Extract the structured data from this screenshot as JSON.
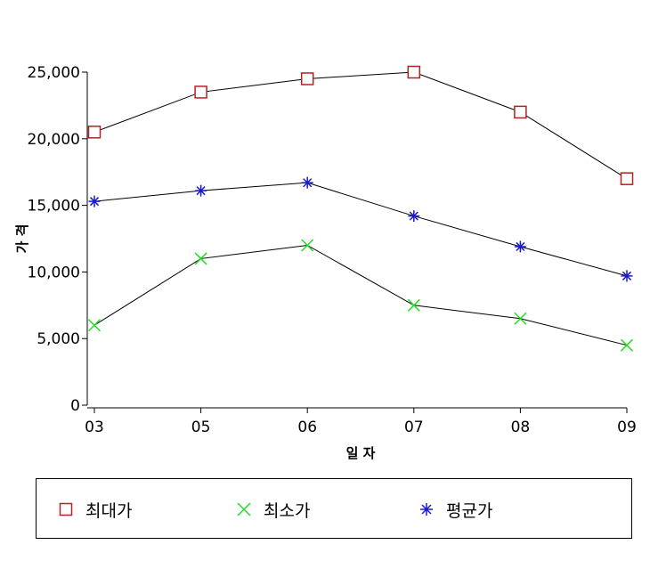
{
  "chart_data": {
    "type": "line",
    "categories": [
      "03",
      "05",
      "06",
      "07",
      "08",
      "09"
    ],
    "series": [
      {
        "name": "최대가",
        "values": [
          20500,
          23500,
          24500,
          25000,
          22000,
          17000
        ],
        "color": "#b22222",
        "marker": "square"
      },
      {
        "name": "최소가",
        "values": [
          6000,
          11000,
          12000,
          7500,
          6500,
          4500
        ],
        "color": "#22dd22",
        "marker": "x"
      },
      {
        "name": "평균가",
        "values": [
          15300,
          16100,
          16700,
          14200,
          11900,
          9700
        ],
        "color": "#1a1acc",
        "marker": "asterisk"
      }
    ],
    "xlabel": "일 자",
    "ylabel": "가 격",
    "ylim": [
      0,
      25000
    ],
    "yticks": [
      0,
      5000,
      10000,
      15000,
      20000,
      25000
    ],
    "ytick_labels": [
      "0",
      "5,000",
      "10,000",
      "15,000",
      "20,000",
      "25,000"
    ],
    "line_color": "#000000",
    "grid": false,
    "legend_position": "bottom"
  }
}
